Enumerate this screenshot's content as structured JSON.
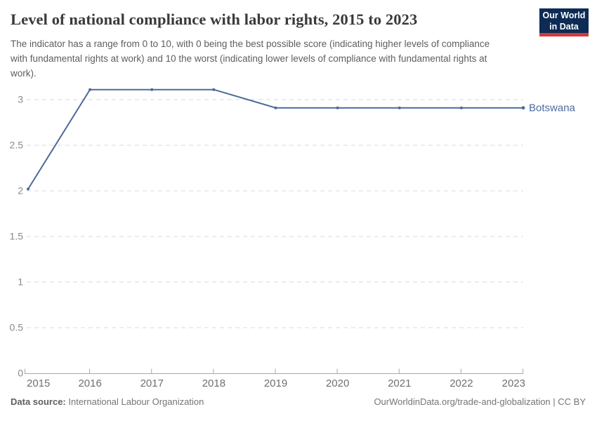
{
  "chart_data": {
    "type": "line",
    "title": "Level of national compliance with labor rights, 2015 to 2023",
    "subtitle": "The indicator has a range from 0 to 10, with 0 being the best possible score (indicating higher levels of compliance with fundamental rights at work) and 10 the worst (indicating lower levels of compliance with fundamental rights at work).",
    "x": [
      2015,
      2016,
      2017,
      2018,
      2019,
      2020,
      2021,
      2022,
      2023
    ],
    "series": [
      {
        "name": "Botswana",
        "color": "#4C6A9C",
        "values": [
          2.02,
          3.11,
          3.11,
          3.11,
          2.91,
          2.91,
          2.91,
          2.91,
          2.91
        ]
      }
    ],
    "xlabel": "",
    "ylabel": "",
    "ylim": [
      0,
      3.25
    ],
    "yticks": [
      0,
      0.5,
      1,
      1.5,
      2,
      2.5,
      3
    ],
    "grid": "horizontal-dashed",
    "legend": "line-end-label"
  },
  "branding": {
    "logo_line1": "Our World",
    "logo_line2": "in Data"
  },
  "footer": {
    "datasource_label": "Data source:",
    "datasource_value": " International Labour Organization",
    "attribution": "OurWorldinData.org/trade-and-globalization | CC BY"
  },
  "colors": {
    "line": "#4C6A9C",
    "grid": "#dadada",
    "axis": "#a8a8a8",
    "y_tick_label": "#8a8a8a",
    "x_tick_label": "#707070",
    "logo_bg": "#0d2b55",
    "logo_red": "#d6383c"
  }
}
